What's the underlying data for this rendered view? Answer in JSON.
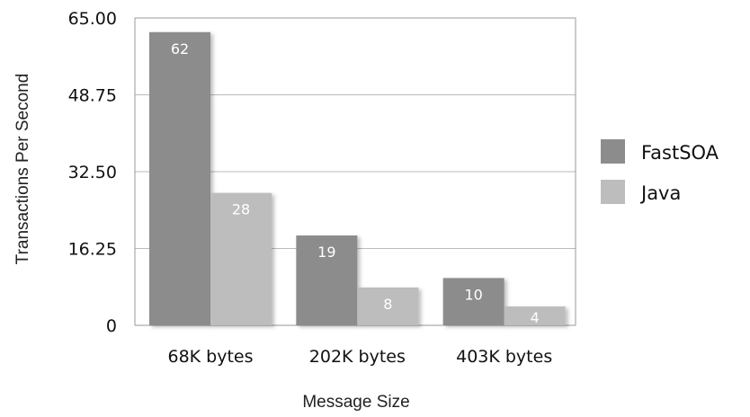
{
  "chart_data": {
    "type": "bar",
    "categories": [
      "68K bytes",
      "202K bytes",
      "403K bytes"
    ],
    "series": [
      {
        "name": "FastSOA",
        "values": [
          62,
          19,
          10
        ],
        "color": "#8c8c8c"
      },
      {
        "name": "Java",
        "values": [
          28,
          8,
          4
        ],
        "color": "#bdbdbd"
      }
    ],
    "yticks": [
      "65.00",
      "48.75",
      "32.50",
      "16.25",
      "0"
    ],
    "ylim": [
      0,
      65
    ],
    "xlabel": "Message Size",
    "ylabel": "Transactions Per Second",
    "grid": true,
    "legend": "right"
  }
}
